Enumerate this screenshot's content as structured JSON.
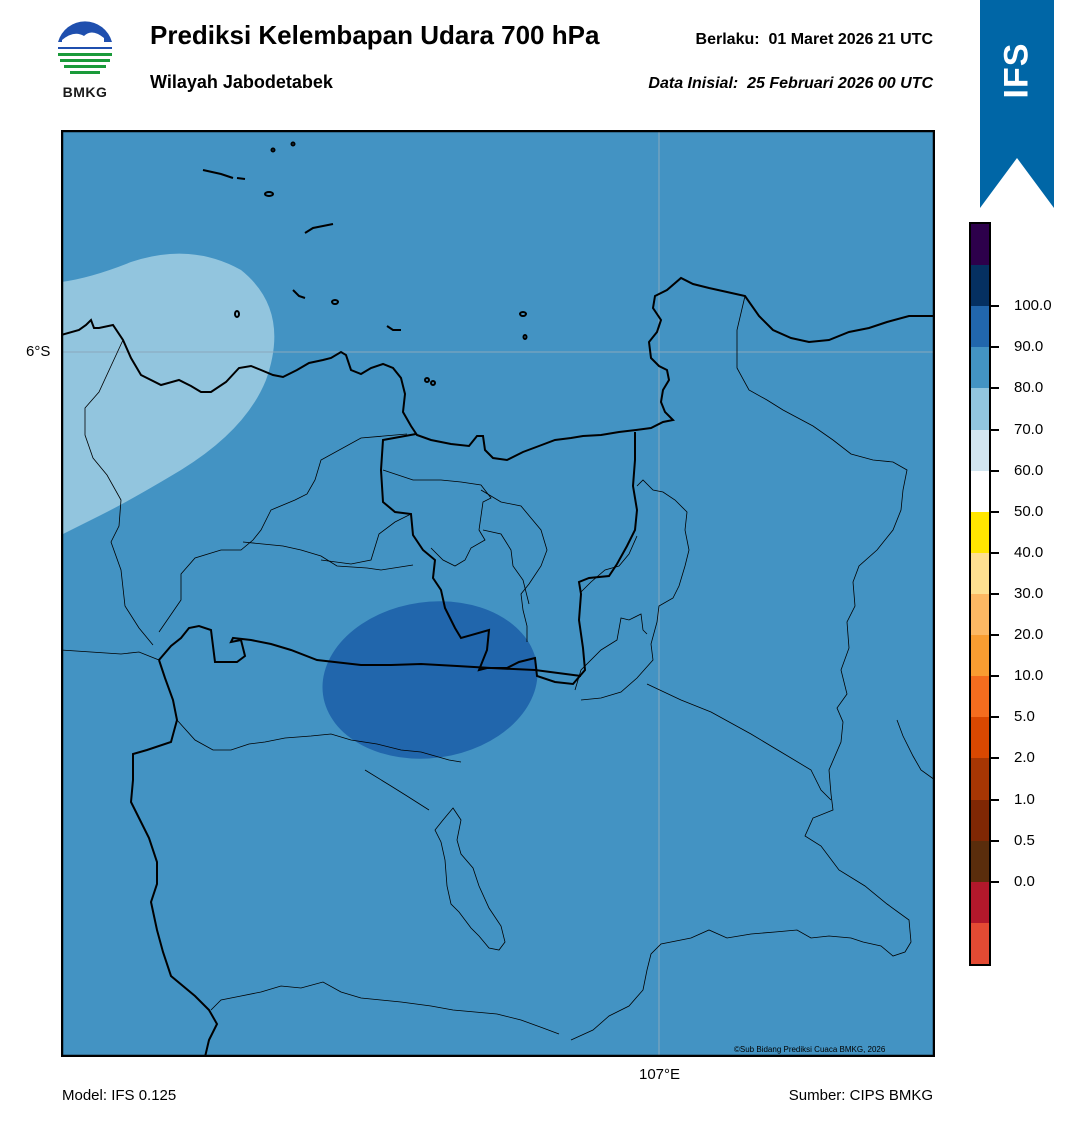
{
  "header": {
    "title": "Prediksi Kelembapan Udara 700 hPa",
    "region": "Wilayah Jabodetabek",
    "valid_label": "Berlaku:",
    "valid_value": "01 Maret 2026 21 UTC",
    "init_label": "Data Inisial:",
    "init_value": "25 Februari 2026 00 UTC"
  },
  "logo": {
    "text": "BMKG",
    "icon": "bmkg-logo-icon"
  },
  "model_badge": {
    "text": "IFS",
    "color": "#0066a6"
  },
  "map": {
    "lat_label": "6°S",
    "lon_label": "107°E",
    "credit": "©Sub Bidang Prediksi Cuaca BMKG, 2026",
    "base_color": "#4393c3",
    "humidity_regions": [
      {
        "name": "northwest",
        "class": "60.0–70.0",
        "color": "#92c5de"
      },
      {
        "name": "central",
        "class": "80.0–90.0",
        "color": "#2166ac"
      },
      {
        "name": "elsewhere",
        "class": "70.0–80.0",
        "color": "#4393c3"
      }
    ]
  },
  "colorbar": {
    "colors_top_to_bottom": [
      "#2d004b",
      "#053061",
      "#2166ac",
      "#4393c3",
      "#92c5de",
      "#d1e5f0",
      "#ffffff",
      "#ffe600",
      "#fee090",
      "#fdb863",
      "#f99d31",
      "#f46d1e",
      "#d94801",
      "#a63603",
      "#7f2704",
      "#5a2d0c",
      "#b2182b",
      "#e34a33"
    ],
    "labels_top_to_bottom": [
      "100.0",
      "90.0",
      "80.0",
      "70.0",
      "60.0",
      "50.0",
      "40.0",
      "30.0",
      "20.0",
      "10.0",
      "5.0",
      "2.0",
      "1.0",
      "0.5",
      "0.0"
    ]
  },
  "footer": {
    "model": "Model: IFS 0.125",
    "source": "Sumber: CIPS BMKG"
  }
}
